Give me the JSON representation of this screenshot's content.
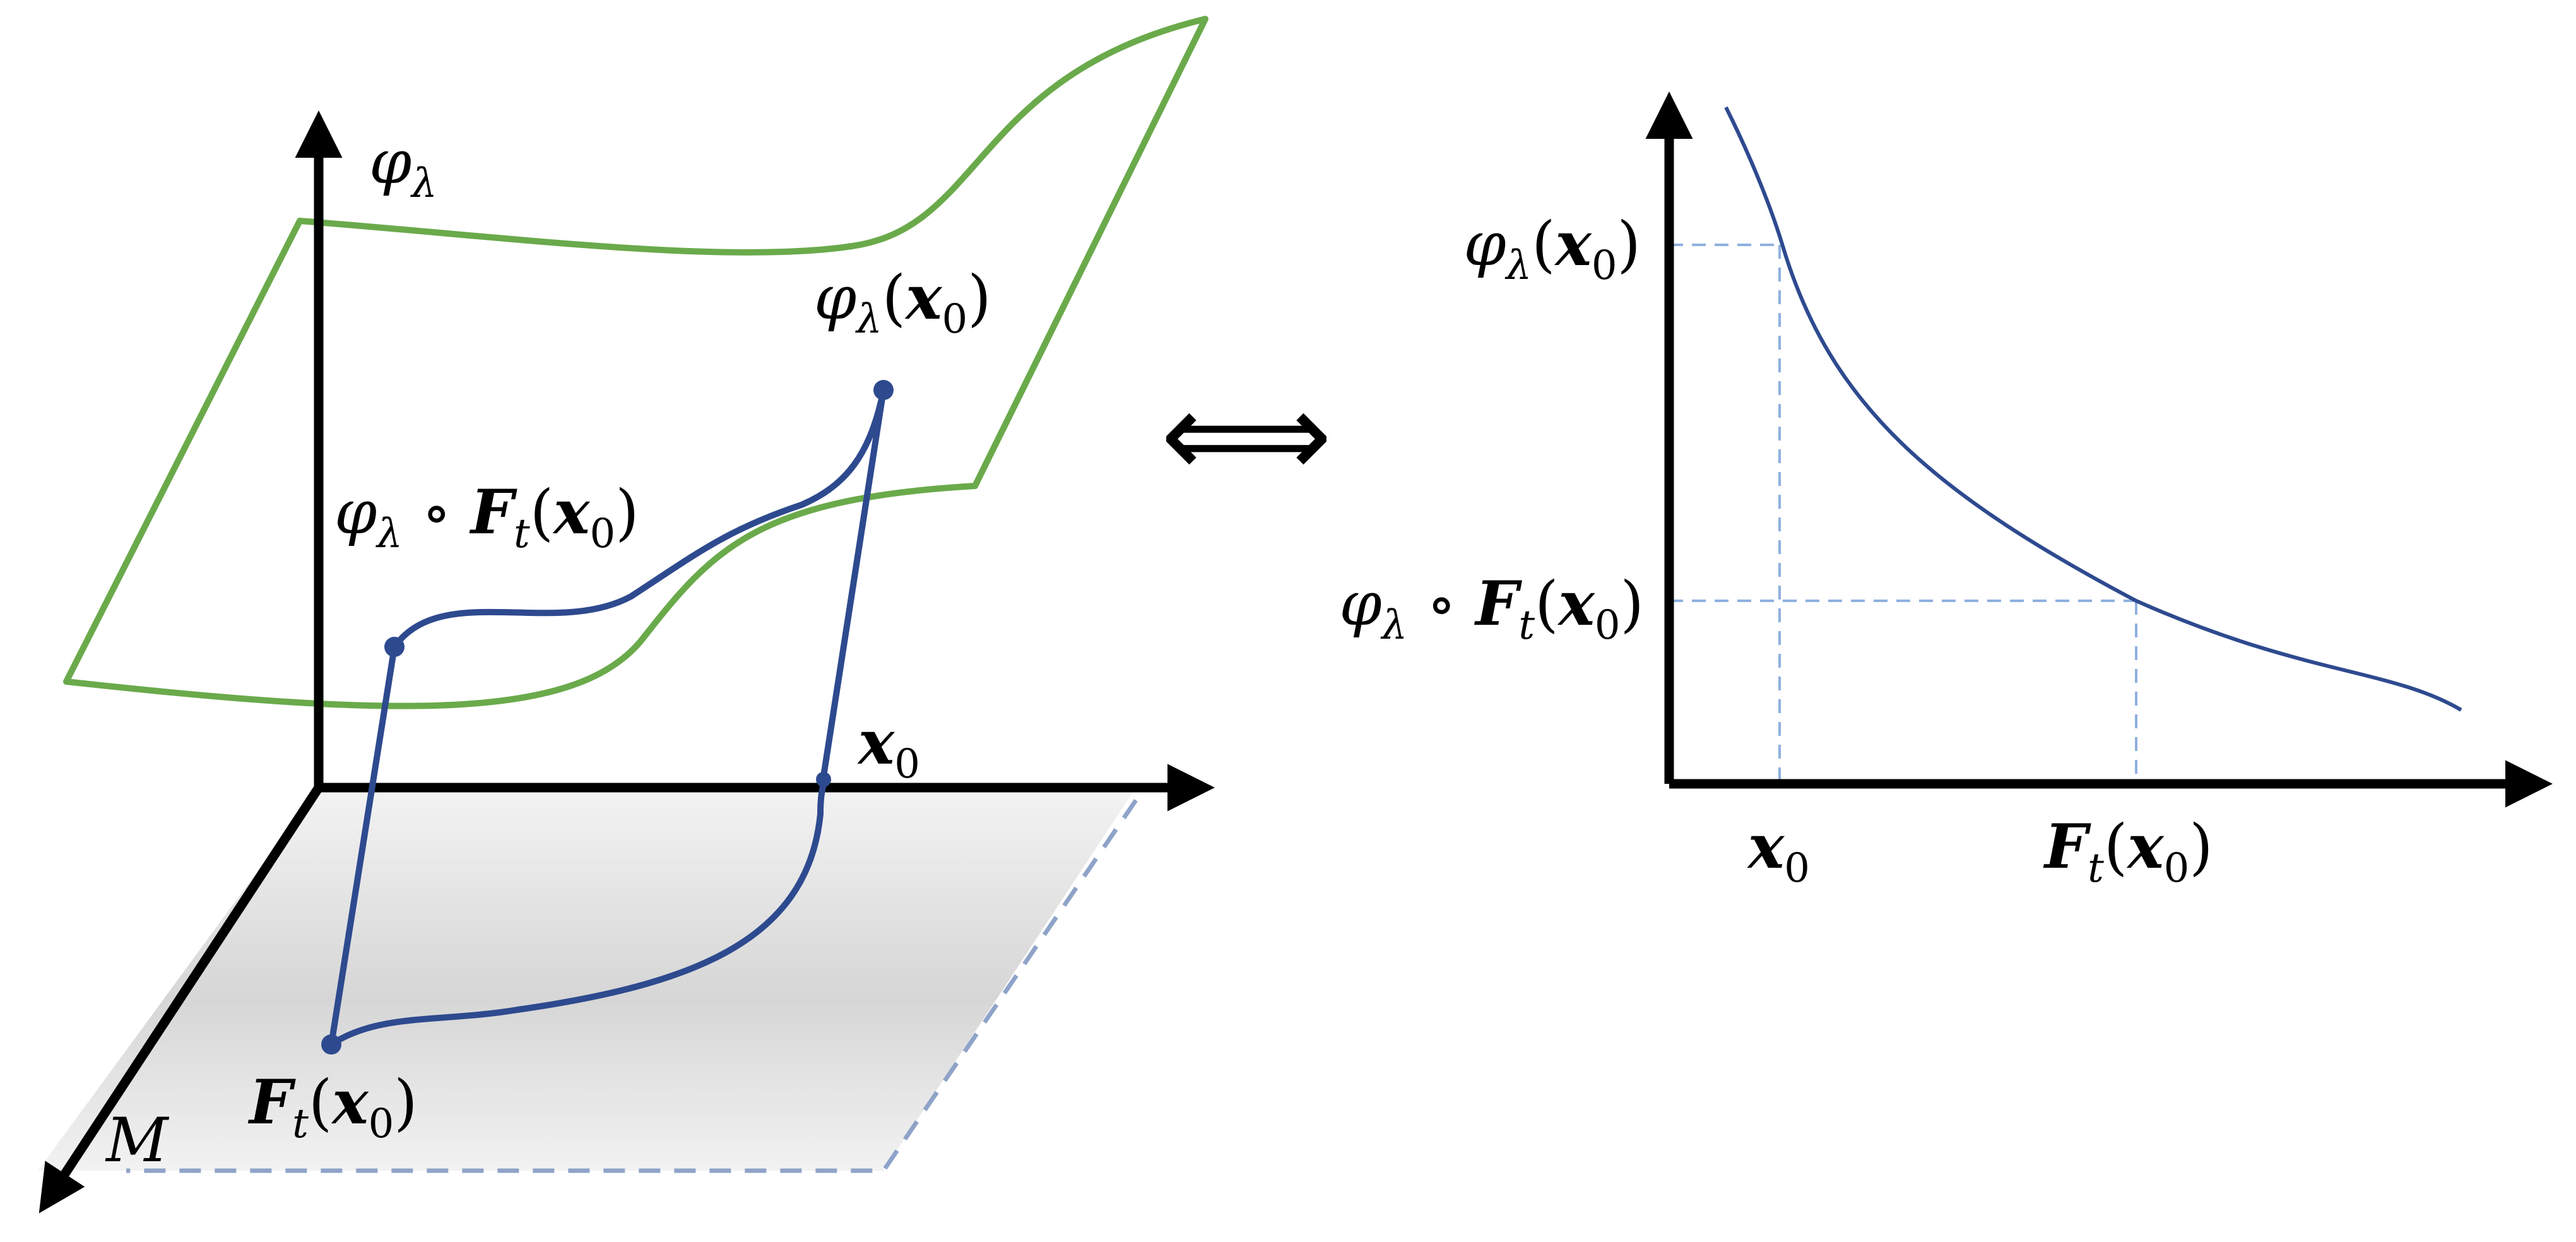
{
  "left_panel": {
    "vertical_axis_label": {
      "main": "φ",
      "sub": "λ"
    },
    "horizontal_axis_label": {
      "main": "x",
      "sub": "0"
    },
    "depth_axis_label": "M",
    "point_top_label": {
      "phi": "φ",
      "lam": "λ",
      "open": "(",
      "x": "x",
      "zero": "0",
      "close": ")"
    },
    "point_mid_label": {
      "phi": "φ",
      "lam": "λ",
      "circ": " ∘ ",
      "F": "F",
      "t": "t",
      "open": "(",
      "x": "x",
      "zero": "0",
      "close": ")"
    },
    "point_base_label": {
      "F": "F",
      "t": "t",
      "open": "(",
      "x": "x",
      "zero": "0",
      "close": ")"
    },
    "colors": {
      "manifold_surface": "#6aaa4b",
      "trajectory": "#2e4a8f",
      "plane_fill": "#d9d9d9",
      "plane_border": "#8fa3c9"
    }
  },
  "equivalence_symbol": "⟺",
  "right_panel": {
    "y_tick_top": {
      "phi": "φ",
      "lam": "λ",
      "open": "(",
      "x": "x",
      "zero": "0",
      "close": ")"
    },
    "y_tick_bottom": {
      "phi": "φ",
      "lam": "λ",
      "circ": " ∘ ",
      "F": "F",
      "t": "t",
      "open": "(",
      "x": "x",
      "zero": "0",
      "close": ")"
    },
    "x_tick_left": {
      "x": "x",
      "zero": "0"
    },
    "x_tick_right": {
      "F": "F",
      "t": "t",
      "open": "(",
      "x": "x",
      "zero": "0",
      "close": ")"
    },
    "colors": {
      "curve": "#2e4a8f",
      "guide": "#8fb0e0"
    }
  }
}
